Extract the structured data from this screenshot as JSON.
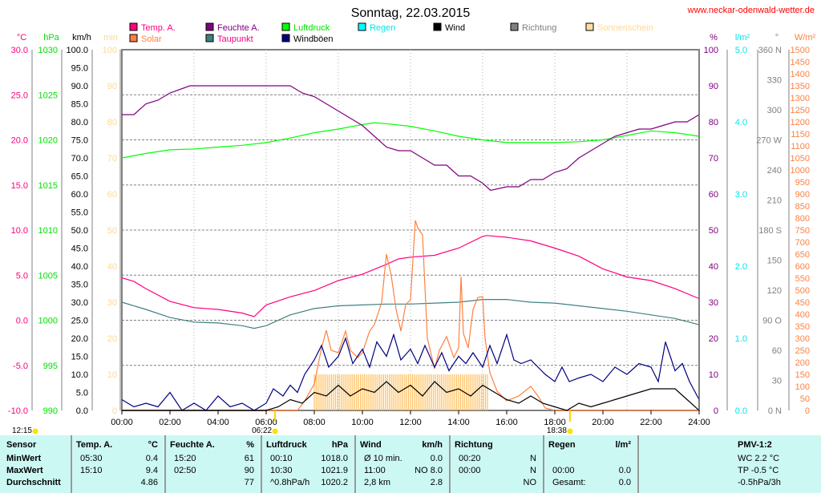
{
  "header": {
    "title": "Sonntag, 22.03.2015",
    "site": "www.neckar-odenwald-wetter.de"
  },
  "legend": [
    {
      "label": "Temp. A.",
      "color": "#ff0080",
      "swatch": "#ff0080"
    },
    {
      "label": "Feuchte A.",
      "color": "#800080",
      "swatch": "#800080"
    },
    {
      "label": "Luftdruck",
      "color": "#00e000",
      "swatch": "#00ff00"
    },
    {
      "label": "Regen",
      "color": "#00e8f0",
      "swatch": "#00ffff"
    },
    {
      "label": "Wind",
      "color": "#000000",
      "swatch": "#000000"
    },
    {
      "label": "Richtung",
      "color": "#808080",
      "swatch": "#808080"
    },
    {
      "label": "Sonnenschein",
      "color": "#ffd890",
      "swatch": "#ffe0a0"
    },
    {
      "label": "Solar",
      "color": "#ff8040",
      "swatch": "#ff8040"
    },
    {
      "label": "Taupunkt",
      "color": "#ff0080",
      "swatch": "#408080"
    },
    {
      "label": "Windböen",
      "color": "#000000",
      "swatch": "#000080"
    }
  ],
  "markers": {
    "noon": "12:15",
    "sunrise": "06:22",
    "sunset": "18:38"
  },
  "chart_data": {
    "type": "line",
    "xlim": [
      0,
      24
    ],
    "xticks": [
      "00:00",
      "02:00",
      "04:00",
      "06:00",
      "08:00",
      "10:00",
      "12:00",
      "14:00",
      "16:00",
      "18:00",
      "20:00",
      "22:00",
      "24:00"
    ],
    "axes": [
      {
        "unit": "°C",
        "min": -10,
        "max": 30,
        "step": 5,
        "dec": 1,
        "color": "#ff0080"
      },
      {
        "unit": "hPa",
        "min": 990,
        "max": 1030,
        "step": 5,
        "dec": 0,
        "color": "#00e000"
      },
      {
        "unit": "km/h",
        "min": 0,
        "max": 100,
        "step": 5,
        "dec": 1,
        "color": "#000000"
      },
      {
        "unit": "min",
        "min": 0,
        "max": 100,
        "step": 10,
        "dec": 0,
        "color": "#ffd890"
      },
      {
        "unit": "%",
        "min": 0,
        "max": 100,
        "step": 10,
        "dec": 0,
        "color": "#800080"
      },
      {
        "unit": "l/m²",
        "min": 0,
        "max": 5,
        "step": 1,
        "dec": 1,
        "color": "#00e8f0"
      },
      {
        "unit": "°",
        "min": 0,
        "max": 360,
        "step": 30,
        "dec": 0,
        "color": "#808080",
        "names": {
          "0": "N",
          "90": "O",
          "180": "S",
          "270": "W",
          "360": "N"
        }
      },
      {
        "unit": "W/m²",
        "min": 0,
        "max": 1500,
        "step": 50,
        "dec": 0,
        "color": "#ff8040"
      }
    ],
    "series": [
      {
        "name": "Luftdruck",
        "axis": 1,
        "color": "#00ff00",
        "x": [
          0,
          1,
          2,
          3,
          4,
          5,
          6,
          7,
          8,
          9,
          10,
          10.5,
          11,
          12,
          13,
          14,
          15,
          16,
          17,
          18,
          19,
          20,
          21,
          22,
          23,
          24
        ],
        "y": [
          1018.0,
          1018.5,
          1018.9,
          1019.0,
          1019.2,
          1019.4,
          1019.7,
          1020.2,
          1020.8,
          1021.2,
          1021.7,
          1021.9,
          1021.8,
          1021.5,
          1021.0,
          1020.4,
          1020.0,
          1019.7,
          1019.7,
          1019.7,
          1019.8,
          1020.0,
          1020.5,
          1021.0,
          1020.8,
          1020.4
        ]
      },
      {
        "name": "Feuchte A.",
        "axis": 4,
        "color": "#800080",
        "x": [
          0,
          0.5,
          1,
          1.5,
          2,
          2.83,
          4,
          5,
          6,
          7,
          7.5,
          8,
          8.5,
          9,
          9.5,
          10,
          10.5,
          11,
          11.5,
          12,
          12.5,
          13,
          13.5,
          14,
          14.5,
          15,
          15.33,
          16,
          16.5,
          17,
          17.5,
          18,
          18.5,
          19,
          19.5,
          20,
          20.5,
          21,
          21.5,
          22,
          22.5,
          23,
          23.5,
          24
        ],
        "y": [
          82,
          82,
          85,
          86,
          88,
          90,
          90,
          90,
          90,
          90,
          88,
          87,
          85,
          83,
          81,
          79,
          76,
          73,
          72,
          72,
          70,
          68,
          68,
          65,
          65,
          63,
          61,
          62,
          62,
          64,
          64,
          66,
          67,
          70,
          72,
          74,
          76,
          77,
          78,
          78,
          79,
          80,
          80,
          82
        ]
      },
      {
        "name": "Temp. A.",
        "axis": 0,
        "color": "#ff0080",
        "x": [
          0,
          0.5,
          1,
          2,
          3,
          4,
          5,
          5.5,
          6,
          7,
          8,
          9,
          10,
          11,
          11.5,
          12,
          13,
          14,
          15,
          15.17,
          16,
          17,
          18,
          19,
          20,
          21,
          22,
          23,
          24
        ],
        "y": [
          4.7,
          4.3,
          3.5,
          2.1,
          1.4,
          1.2,
          0.8,
          0.4,
          1.7,
          2.6,
          3.3,
          4.4,
          5.1,
          6.2,
          6.8,
          7.0,
          7.2,
          8.0,
          9.3,
          9.4,
          9.2,
          8.8,
          8.0,
          7.1,
          5.7,
          4.8,
          4.4,
          3.5,
          2.4
        ]
      },
      {
        "name": "Taupunkt",
        "axis": 0,
        "color": "#408080",
        "x": [
          0,
          1,
          2,
          3,
          4,
          5,
          5.5,
          6,
          7,
          8,
          9,
          10,
          11,
          12,
          13,
          14,
          15,
          16,
          17,
          18,
          19,
          20,
          21,
          22,
          23,
          24
        ],
        "y": [
          2.0,
          1.2,
          0.3,
          -0.2,
          -0.3,
          -0.6,
          -0.9,
          -0.6,
          0.6,
          1.3,
          1.6,
          1.7,
          1.8,
          1.8,
          1.9,
          2.0,
          2.3,
          2.3,
          2.0,
          1.9,
          1.6,
          1.3,
          1.0,
          0.6,
          0.2,
          -0.5
        ]
      },
      {
        "name": "Solar",
        "axis": 7,
        "color": "#ff8040",
        "x": [
          0,
          7.3,
          7.6,
          8,
          8.3,
          8.5,
          8.7,
          9,
          9.3,
          9.5,
          9.8,
          10,
          10.3,
          10.5,
          10.8,
          11,
          11.2,
          11.4,
          11.6,
          11.8,
          12,
          12.2,
          12.3,
          12.5,
          12.7,
          13,
          13.2,
          13.5,
          13.8,
          14,
          14.1,
          14.2,
          14.4,
          14.6,
          14.8,
          15,
          15.1,
          15.3,
          15.6,
          16,
          16.5,
          17,
          17.3,
          17.6,
          18,
          24
        ],
        "y": [
          0,
          0,
          40,
          110,
          260,
          333,
          250,
          240,
          330,
          250,
          220,
          240,
          330,
          357,
          450,
          650,
          560,
          420,
          330,
          440,
          460,
          790,
          760,
          730,
          300,
          173,
          250,
          307,
          220,
          260,
          557,
          320,
          260,
          420,
          470,
          473,
          300,
          157,
          80,
          40,
          60,
          100,
          60,
          10,
          0,
          0
        ]
      },
      {
        "name": "Windböen",
        "axis": 2,
        "color": "#000080",
        "x": [
          0,
          0.5,
          1,
          1.5,
          2,
          2.5,
          3,
          3.5,
          4,
          4.5,
          5,
          5.5,
          6,
          6.3,
          6.7,
          7,
          7.3,
          7.6,
          8,
          8.3,
          8.6,
          9,
          9.3,
          9.6,
          10,
          10.3,
          10.6,
          11,
          11.3,
          11.6,
          12,
          12.3,
          12.6,
          13,
          13.3,
          13.6,
          14,
          14.3,
          14.6,
          15,
          15.3,
          15.6,
          16,
          16.3,
          16.6,
          17,
          17.3,
          17.6,
          18,
          18.3,
          18.6,
          19,
          19.5,
          20,
          20.5,
          21,
          21.5,
          22,
          22.3,
          22.6,
          23,
          23.3,
          23.6,
          24
        ],
        "y": [
          3,
          1,
          2,
          1,
          5,
          0,
          2,
          0,
          4,
          1,
          2,
          0,
          2,
          6,
          4,
          7,
          5,
          10,
          14,
          18,
          12,
          15,
          20,
          13,
          17,
          12,
          19,
          15,
          21,
          14,
          17,
          13,
          18,
          12,
          16,
          11,
          15,
          13,
          16,
          12,
          18,
          13,
          21,
          14,
          13,
          14,
          12,
          10,
          8,
          12,
          8,
          9,
          10,
          8,
          12,
          10,
          13,
          12,
          8,
          19,
          11,
          13,
          8,
          3
        ]
      },
      {
        "name": "Wind",
        "axis": 2,
        "color": "#000000",
        "x": [
          0,
          2,
          4,
          6,
          6.5,
          7,
          7.5,
          8,
          8.5,
          9,
          9.5,
          10,
          10.5,
          11,
          11.5,
          12,
          12.5,
          13,
          13.5,
          14,
          14.5,
          15,
          15.5,
          16,
          16.5,
          17,
          17.5,
          18,
          18.5,
          19,
          19.5,
          20,
          20.5,
          21,
          21.5,
          22,
          22.5,
          23,
          23.5,
          24
        ],
        "y": [
          0,
          0,
          0,
          0,
          1,
          3,
          2,
          5,
          4,
          7,
          4,
          6,
          5,
          8,
          5,
          7,
          4,
          8,
          5,
          6,
          4,
          7,
          5,
          3,
          2,
          4,
          2,
          1,
          0,
          2,
          1,
          2,
          3,
          4,
          5,
          6,
          6,
          6,
          3,
          0
        ]
      },
      {
        "name": "Sonnenschein",
        "axis": 3,
        "color": "#ffc060",
        "x": [
          8,
          15.25
        ],
        "y": [
          10,
          10
        ]
      }
    ]
  },
  "table": {
    "sensor": {
      "head": "Sensor",
      "rows": [
        "MinWert",
        "MaxWert",
        "Durchschnitt"
      ]
    },
    "temp": {
      "head": "Temp. A.",
      "unit": "°C",
      "times": [
        "05:30",
        "15:10",
        ""
      ],
      "vals": [
        "0.4",
        "9.4",
        "4.86"
      ]
    },
    "hum": {
      "head": "Feuchte A.",
      "unit": "%",
      "times": [
        "15:20",
        "02:50",
        ""
      ],
      "vals": [
        "61",
        "90",
        "77"
      ]
    },
    "press": {
      "head": "Luftdruck",
      "unit": "hPa",
      "times": [
        "00:10",
        "10:30",
        "^0.8hPa/h"
      ],
      "vals": [
        "1018.0",
        "1021.9",
        "1020.2"
      ]
    },
    "wind": {
      "head": "Wind",
      "unit": "km/h",
      "times": [
        "Ø 10 min.",
        "11:00",
        "2,8 km"
      ],
      "vals": [
        "0.0",
        "NO 8.0",
        "2.8"
      ]
    },
    "dir": {
      "head": "Richtung",
      "unit": "",
      "times": [
        "00:20",
        "00:00",
        ""
      ],
      "vals": [
        "N",
        "N",
        "NO"
      ]
    },
    "rain": {
      "head": "Regen",
      "unit": "l/m²",
      "times": [
        "",
        "00:00",
        "Gesamt:"
      ],
      "vals": [
        "",
        "0.0",
        "0.0"
      ]
    },
    "pmv": {
      "head": "PMV-1:2",
      "rows": [
        "WC 2.2 °C",
        "TP -0.5 °C",
        "-0.5hPa/3h"
      ]
    }
  }
}
